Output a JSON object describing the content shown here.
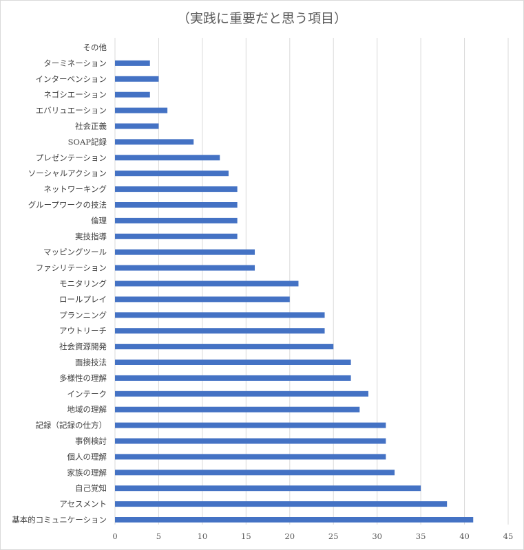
{
  "chart_data": {
    "type": "bar",
    "orientation": "horizontal",
    "title": "（実践に重要だと思う項目）",
    "xlim": [
      0,
      45
    ],
    "x_ticks": [
      0,
      5,
      10,
      15,
      20,
      25,
      30,
      35,
      40,
      45
    ],
    "grid": "vertical",
    "legend": "none",
    "bar_color": "#4472c4",
    "categories": [
      "その他",
      "ターミネーション",
      "インターベンション",
      "ネゴシエーション",
      "エバリュエーション",
      "社会正義",
      "SOAP記録",
      "プレゼンテーション",
      "ソーシャルアクション",
      "ネットワーキング",
      "グループワークの技法",
      "倫理",
      "実技指導",
      "マッピングツール",
      "ファシリテーション",
      "モニタリング",
      "ロールプレイ",
      "プランニング",
      "アウトリーチ",
      "社会資源開発",
      "面接技法",
      "多様性の理解",
      "インテーク",
      "地域の理解",
      "記録（記録の仕方）",
      "事例検討",
      "個人の理解",
      "家族の理解",
      "自己覚知",
      "アセスメント",
      "基本的コミュニケーション"
    ],
    "values": [
      0,
      4,
      5,
      4,
      6,
      5,
      9,
      12,
      13,
      14,
      14,
      14,
      14,
      16,
      16,
      21,
      20,
      24,
      24,
      25,
      27,
      27,
      29,
      28,
      31,
      31,
      31,
      32,
      35,
      38,
      41
    ]
  }
}
